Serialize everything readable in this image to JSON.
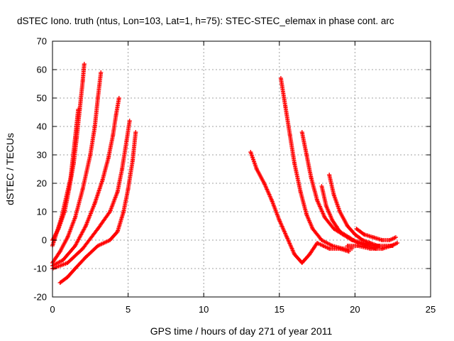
{
  "chart_data": {
    "type": "scatter",
    "title": "dSTEC Iono. truth (ntus, Lon=103, Lat=1, h=75): STEC-STEC_elemax in phase cont. arc",
    "xlabel": "GPS time / hours of day 271 of year 2011",
    "ylabel": "dSTEC  / TECUs",
    "xlim": [
      0,
      25
    ],
    "ylim": [
      -20,
      70
    ],
    "xticks": [
      0,
      5,
      10,
      15,
      20,
      25
    ],
    "yticks": [
      -20,
      -10,
      0,
      10,
      20,
      30,
      40,
      50,
      60,
      70
    ],
    "grid": true,
    "marker": "+",
    "series_color": "#ff0000",
    "series": [
      {
        "x": [
          0.0,
          0.4,
          0.8,
          1.1,
          1.4,
          1.6,
          1.8,
          2.0,
          2.1
        ],
        "y": [
          0,
          4,
          10,
          18,
          27,
          36,
          46,
          56,
          62
        ]
      },
      {
        "x": [
          0.0,
          0.6,
          1.2,
          1.5,
          1.7
        ],
        "y": [
          -2,
          8,
          22,
          36,
          46
        ]
      },
      {
        "x": [
          0.0,
          0.5,
          1.0,
          1.5,
          2.0,
          2.5,
          2.8,
          3.0,
          3.2
        ],
        "y": [
          -8,
          -4,
          1,
          8,
          18,
          30,
          40,
          50,
          59
        ]
      },
      {
        "x": [
          0.0,
          0.7,
          1.5,
          2.2,
          2.8,
          3.3,
          3.7,
          4.0,
          4.2,
          4.4
        ],
        "y": [
          -9,
          -7,
          -2,
          5,
          13,
          21,
          29,
          37,
          44,
          50
        ]
      },
      {
        "x": [
          0.0,
          1.0,
          2.0,
          3.0,
          3.8,
          4.3,
          4.6,
          4.9,
          5.1
        ],
        "y": [
          -10,
          -8,
          -3,
          4,
          10,
          17,
          25,
          35,
          42
        ]
      },
      {
        "x": [
          0.5,
          1.0,
          1.5,
          2.2,
          3.0,
          3.8,
          4.3,
          4.7,
          5.0,
          5.3,
          5.5
        ],
        "y": [
          -15,
          -13,
          -10,
          -6,
          -2,
          0,
          3,
          10,
          18,
          28,
          38
        ]
      },
      {
        "x": [
          13.1,
          13.5,
          14.0,
          14.5,
          15.0,
          15.5,
          16.0,
          16.5,
          17.0,
          17.5,
          17.9,
          18.3,
          19.0,
          19.6
        ],
        "y": [
          31,
          25,
          20,
          14,
          7,
          1,
          -5,
          -8,
          -5,
          -1,
          -2,
          -3,
          -3,
          -4
        ]
      },
      {
        "x": [
          15.1,
          15.4,
          15.7,
          16.0,
          16.4,
          16.8,
          17.2,
          17.8,
          18.5,
          19.2,
          19.8
        ],
        "y": [
          57,
          47,
          37,
          27,
          17,
          9,
          4,
          0,
          -2,
          -3,
          -3
        ]
      },
      {
        "x": [
          16.5,
          16.8,
          17.1,
          17.5,
          18.0,
          18.6,
          19.2,
          19.8,
          20.5,
          21.2,
          21.6
        ],
        "y": [
          38,
          30,
          22,
          14,
          8,
          4,
          2,
          0,
          -1,
          -2,
          -2
        ]
      },
      {
        "x": [
          17.8,
          18.1,
          18.5,
          19.0,
          19.6,
          20.2,
          20.8,
          21.4
        ],
        "y": [
          19,
          12,
          7,
          3,
          1,
          -1,
          -2,
          -3
        ]
      },
      {
        "x": [
          18.3,
          18.6,
          19.0,
          19.5,
          20.0,
          20.5,
          21.0,
          21.5,
          22.0,
          22.5
        ],
        "y": [
          23,
          16,
          10,
          5,
          2,
          0,
          -1,
          -2,
          -2,
          -2
        ]
      },
      {
        "x": [
          20.1,
          20.6,
          21.2,
          21.8,
          22.3,
          22.7
        ],
        "y": [
          4,
          2,
          1,
          0,
          0,
          1
        ]
      },
      {
        "x": [
          19.5,
          20.2,
          21.0,
          21.8,
          22.4,
          22.8
        ],
        "y": [
          -2,
          -2,
          -3,
          -3,
          -2,
          -1
        ]
      }
    ]
  }
}
